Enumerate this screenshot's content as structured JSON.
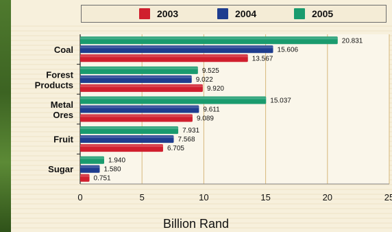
{
  "chart_data": {
    "type": "bar",
    "orientation": "horizontal",
    "categories": [
      "Coal",
      "Forest Products",
      "Metal Ores",
      "Fruit",
      "Sugar"
    ],
    "series": [
      {
        "name": "2003",
        "color": "#d01f2e",
        "values": [
          13.567,
          9.92,
          9.089,
          6.705,
          0.751
        ],
        "labels": [
          "13.567",
          "9.920",
          "9.089",
          "6.705",
          "0.751"
        ]
      },
      {
        "name": "2004",
        "color": "#1e3d8f",
        "values": [
          15.606,
          9.022,
          9.611,
          7.568,
          1.58
        ],
        "labels": [
          "15.606",
          "9.022",
          "9.611",
          "7.568",
          "1.580"
        ]
      },
      {
        "name": "2005",
        "color": "#1a9b6e",
        "values": [
          20.831,
          9.525,
          15.037,
          7.931,
          1.94
        ],
        "labels": [
          "20.831",
          "9.525",
          "15.037",
          "7.931",
          "1.940"
        ]
      }
    ],
    "xlabel": "Billion Rand",
    "xlim": [
      0,
      25
    ],
    "xticks": [
      "0",
      "5",
      "10",
      "15",
      "20",
      "25"
    ],
    "grid": true,
    "legend_position": "top"
  }
}
